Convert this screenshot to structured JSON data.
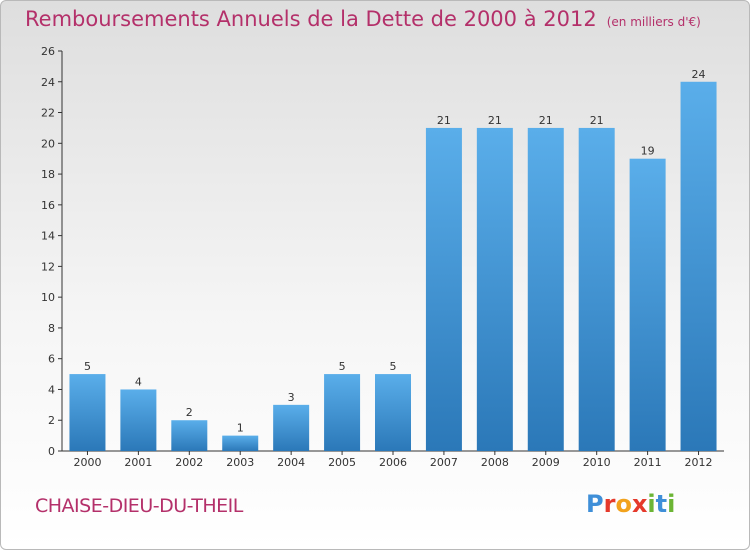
{
  "title": "Remboursements Annuels de la Dette de 2000 à 2012",
  "subtitle": "(en milliers d'€)",
  "commune": "CHAISE-DIEU-DU-THEIL",
  "logo": {
    "text": "Proxiti",
    "letters": [
      {
        "ch": "P",
        "color": "#3f8fd8"
      },
      {
        "ch": "r",
        "color": "#e5392b"
      },
      {
        "ch": "o",
        "color": "#f2a21c"
      },
      {
        "ch": "x",
        "color": "#e5392b"
      },
      {
        "ch": "i",
        "color": "#6cb535"
      },
      {
        "ch": "t",
        "color": "#3f8fd8"
      },
      {
        "ch": "i",
        "color": "#6cb535"
      }
    ]
  },
  "colors": {
    "bar_top": "#5aaeea",
    "bar_bottom": "#2b78b8",
    "title": "#b4306a"
  },
  "chart_data": {
    "type": "bar",
    "categories": [
      "2000",
      "2001",
      "2002",
      "2003",
      "2004",
      "2005",
      "2006",
      "2007",
      "2008",
      "2009",
      "2010",
      "2011",
      "2012"
    ],
    "values": [
      5,
      4,
      2,
      1,
      3,
      5,
      5,
      21,
      21,
      21,
      21,
      19,
      24
    ],
    "ylim": [
      0,
      26
    ],
    "yticks": [
      0,
      2,
      4,
      6,
      8,
      10,
      12,
      14,
      16,
      18,
      20,
      22,
      24,
      26
    ],
    "grid": false,
    "data_labels": true
  }
}
